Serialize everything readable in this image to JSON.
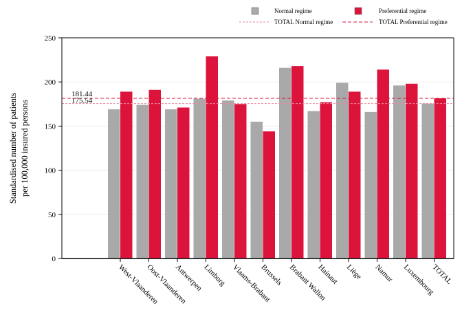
{
  "chart_data": {
    "type": "bar",
    "categories": [
      "West-Vlaanderen",
      "Oost-Vlaanderen",
      "Antwerpen",
      "Limburg",
      "Vlaams-Brabant",
      "Brussels",
      "Brabant Wallon",
      "Hainaut",
      "Liège",
      "Namur",
      "Luxembourg",
      "TOTAL"
    ],
    "series": [
      {
        "name": "Normal regime",
        "color": "#a9a9a9",
        "values": [
          169,
          174,
          169,
          181,
          179,
          155,
          216,
          167,
          199,
          166,
          196,
          175.54
        ]
      },
      {
        "name": "Preferential regime",
        "color": "#dc143c",
        "values": [
          189,
          191,
          171,
          229,
          175,
          144,
          218,
          177,
          189,
          214,
          198,
          181.44
        ]
      }
    ],
    "reference_lines": [
      {
        "name": "TOTAL Normal regime",
        "value": 175.54,
        "label": "175.54",
        "color": "#e88aa0",
        "dash": "fine"
      },
      {
        "name": "TOTAL Preferential regime",
        "value": 181.44,
        "label": "181.44",
        "color": "#dc143c",
        "dash": "coarse"
      }
    ],
    "ylabel_lines": [
      "Standardised number of patients",
      "per 100,000 insured persons"
    ],
    "ylim": [
      0,
      250
    ],
    "yticks": [
      0,
      50,
      100,
      150,
      200,
      250
    ],
    "grid": true,
    "legend_position": "top-right"
  }
}
